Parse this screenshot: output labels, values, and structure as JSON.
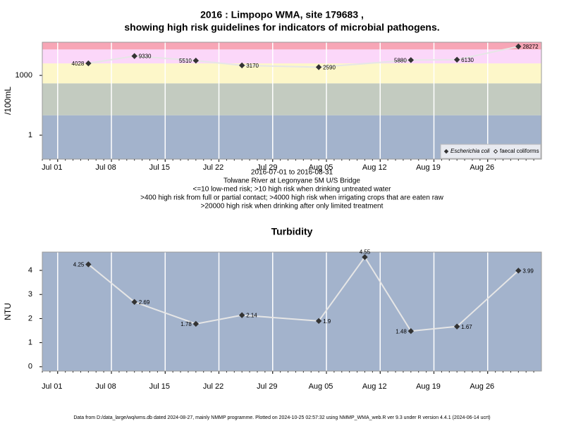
{
  "chart_data": [
    {
      "type": "line",
      "title": [
        "2016 : Limpopo WMA, site 179683 ,",
        "showing high risk guidelines for indicators of microbial pathogens."
      ],
      "notes": [
        "2016-07-01 to 2016-08-31",
        "Tolwane River at Legonyane 5M U/S Bridge",
        "<=10 low-med risk; >10 high risk when drinking untreated water",
        ">400 high risk from full or partial contact; >4000 high risk when irrigating crops that are eaten raw",
        ">20000 high risk when drinking after only limited treatment"
      ],
      "ylabel": "/100mL",
      "log_scale": true,
      "grid": "x",
      "legend": "bottom right",
      "x": [
        "2016-07-05",
        "2016-07-11",
        "2016-07-19",
        "2016-07-25",
        "2016-08-04",
        "2016-08-16",
        "2016-08-22",
        "2016-08-30"
      ],
      "series": [
        {
          "name": "Escherichia coli",
          "color": "#333333",
          "values": [
            4028,
            9330,
            5510,
            3170,
            2590,
            5880,
            6130,
            28272
          ]
        },
        {
          "name": "faecal coliforms",
          "color": "#333333",
          "values": [
            null,
            null,
            null,
            null,
            null,
            null,
            null,
            null
          ]
        }
      ],
      "bands": [
        {
          "max": 10,
          "color": "#a3b3cc"
        },
        {
          "max": 400,
          "color": "#c3cbc0"
        },
        {
          "max": 4000,
          "color": "#fdf7c9"
        },
        {
          "max": 20000,
          "color": "#fbd7f9"
        },
        {
          "max": 46000,
          "color": "#f7a6b6"
        }
      ],
      "xlim": [
        "2016-06-29",
        "2016-09-02"
      ],
      "xticks": [
        {
          "value": "2016-07-01",
          "label": "Jul 01"
        },
        {
          "value": "2016-07-08",
          "label": "Jul 08"
        },
        {
          "value": "2016-07-15",
          "label": "Jul 15"
        },
        {
          "value": "2016-07-22",
          "label": "Jul 22"
        },
        {
          "value": "2016-07-29",
          "label": "Jul 29"
        },
        {
          "value": "2016-08-05",
          "label": "Aug 05"
        },
        {
          "value": "2016-08-12",
          "label": "Aug 12"
        },
        {
          "value": "2016-08-19",
          "label": "Aug 19"
        },
        {
          "value": "2016-08-26",
          "label": "Aug 26"
        }
      ],
      "ylim": [
        0.063,
        46000
      ],
      "yticks": [
        1,
        1000
      ]
    },
    {
      "type": "line",
      "title": "Turbidity",
      "ylabel": "NTU",
      "grid": "x",
      "background": "#a3b3cc",
      "x": [
        "2016-07-05",
        "2016-07-11",
        "2016-07-19",
        "2016-07-25",
        "2016-08-04",
        "2016-08-10",
        "2016-08-16",
        "2016-08-22",
        "2016-08-30"
      ],
      "series": [
        {
          "name": "Turbidity",
          "color": "#333333",
          "values": [
            4.25,
            2.69,
            1.78,
            2.14,
            1.9,
            4.55,
            1.48,
            1.67,
            3.99
          ]
        }
      ],
      "xlim": [
        "2016-06-29",
        "2016-09-02"
      ],
      "xticks": [
        {
          "value": "2016-07-01",
          "label": "Jul 01"
        },
        {
          "value": "2016-07-08",
          "label": "Jul 08"
        },
        {
          "value": "2016-07-15",
          "label": "Jul 15"
        },
        {
          "value": "2016-07-22",
          "label": "Jul 22"
        },
        {
          "value": "2016-07-29",
          "label": "Jul 29"
        },
        {
          "value": "2016-08-05",
          "label": "Aug 05"
        },
        {
          "value": "2016-08-12",
          "label": "Aug 12"
        },
        {
          "value": "2016-08-19",
          "label": "Aug 19"
        },
        {
          "value": "2016-08-26",
          "label": "Aug 26"
        }
      ],
      "ylim": [
        -0.18,
        4.76
      ],
      "yticks": [
        0,
        1,
        2,
        3,
        4
      ]
    }
  ],
  "footer": "Data from D:/data_large/wq/wms.db dated 2024-08-27, mainly NMMP programme. Plotted on 2024-10-25 02:57:32 using NMMP_WMA_web.R ver 9.3 under R version 4.4.1 (2024-06-14 ucrt)"
}
